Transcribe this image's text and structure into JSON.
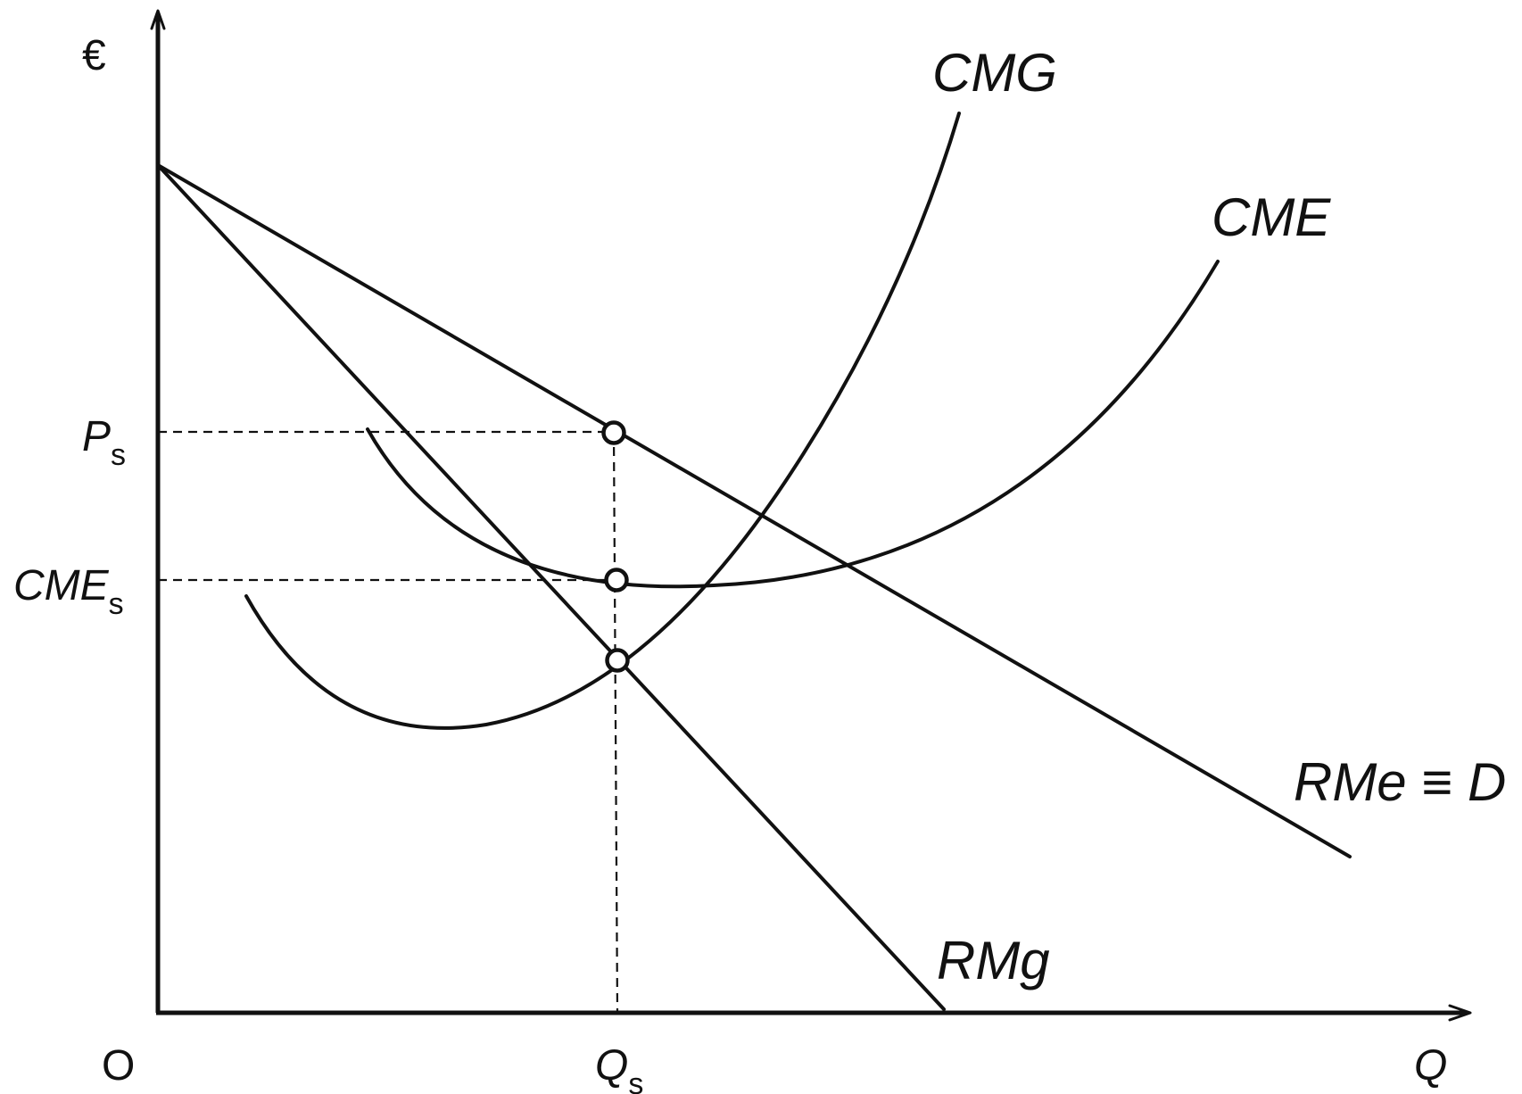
{
  "diagram": {
    "axes": {
      "y_unit": "€",
      "origin": "O",
      "x_label": "Q"
    },
    "curves": {
      "cmg": "CMG",
      "cme": "CME",
      "rme_d": "RMe ≡ D",
      "rmg": "RMg"
    },
    "levels": {
      "price": {
        "main": "P",
        "sub": "s"
      },
      "average_cost": {
        "main": "CME",
        "sub": "s"
      },
      "quantity": {
        "main": "Q",
        "sub": "s"
      }
    }
  }
}
